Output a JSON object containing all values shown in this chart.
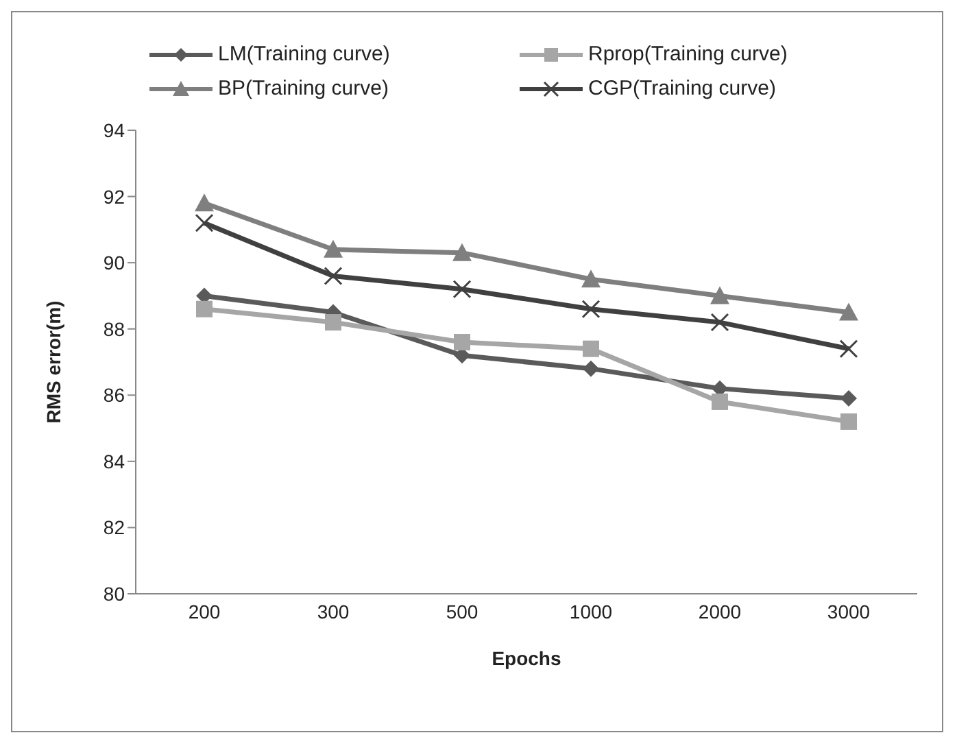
{
  "chart_data": {
    "type": "line",
    "xlabel": "Epochs",
    "ylabel": "RMS error(m)",
    "categories": [
      "200",
      "300",
      "500",
      "1000",
      "2000",
      "3000"
    ],
    "series": [
      {
        "name": "LM(Training curve)",
        "color": "#5a5a5a",
        "marker": "diamond",
        "values": [
          89.0,
          88.5,
          87.2,
          86.8,
          86.2,
          85.9
        ]
      },
      {
        "name": "Rprop(Training curve)",
        "color": "#a6a6a6",
        "marker": "square",
        "values": [
          88.6,
          88.2,
          87.6,
          87.4,
          85.8,
          85.2
        ]
      },
      {
        "name": "BP(Training curve)",
        "color": "#7f7f7f",
        "marker": "triangle",
        "values": [
          91.8,
          90.4,
          90.3,
          89.5,
          89.0,
          88.5
        ]
      },
      {
        "name": "CGP(Training curve)",
        "color": "#404040",
        "marker": "cross",
        "values": [
          91.2,
          89.6,
          89.2,
          88.6,
          88.2,
          87.4
        ]
      }
    ],
    "ylim": [
      80,
      94
    ],
    "yticks": [
      80,
      82,
      84,
      86,
      88,
      90,
      92,
      94
    ],
    "legend": "top"
  }
}
